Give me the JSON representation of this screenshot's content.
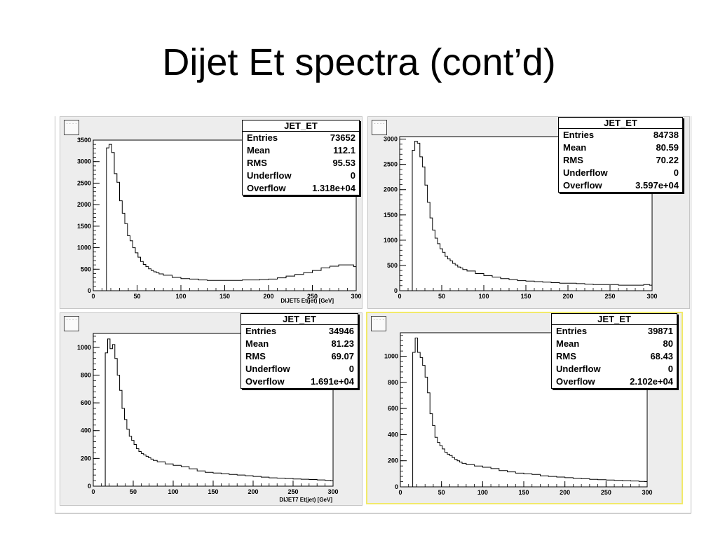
{
  "slide": {
    "title": "Dijet Et spectra (cont’d)"
  },
  "ui": {
    "corner_label": "····"
  },
  "colors": {
    "pad_bg": "#ededed",
    "hist_line": "#000000",
    "selected_border": "#f2ea6a"
  },
  "stat_labels": {
    "entries": "Entries",
    "mean": "Mean",
    "rms": "RMS",
    "underflow": "Underflow",
    "overflow": "Overflow"
  },
  "pads": [
    {
      "selected": false,
      "stats": {
        "title": "JET_ET",
        "entries": "73652",
        "mean": "112.1",
        "rms": "95.53",
        "underflow": "0",
        "overflow": "1.318e+04"
      },
      "xlabel": "DIJET5 Et(jet) [GeV]",
      "xlim": [
        0,
        300
      ],
      "ylim": [
        0,
        3500
      ],
      "xticks": [
        0,
        50,
        100,
        150,
        200,
        250,
        300
      ],
      "yticks": [
        0,
        500,
        1000,
        1500,
        2000,
        2500,
        3000,
        3500
      ]
    },
    {
      "selected": false,
      "stats": {
        "title": "JET_ET",
        "entries": "84738",
        "mean": "80.59",
        "rms": "70.22",
        "underflow": "0",
        "overflow": "3.597e+04"
      },
      "xlabel": "",
      "xlim": [
        0,
        300
      ],
      "ylim": [
        0,
        3050
      ],
      "xticks": [
        0,
        50,
        100,
        150,
        200,
        250,
        300
      ],
      "yticks": [
        0,
        500,
        1000,
        1500,
        2000,
        2500,
        3000
      ]
    },
    {
      "selected": false,
      "stats": {
        "title": "JET_ET",
        "entries": "34946",
        "mean": "81.23",
        "rms": "69.07",
        "underflow": "0",
        "overflow": "1.691e+04"
      },
      "xlabel": "DIJET7 Et(jet) [GeV]",
      "xlim": [
        0,
        300
      ],
      "ylim": [
        0,
        1100
      ],
      "xticks": [
        0,
        50,
        100,
        150,
        200,
        250,
        300
      ],
      "yticks": [
        0,
        200,
        400,
        600,
        800,
        1000
      ]
    },
    {
      "selected": true,
      "stats": {
        "title": "JET_ET",
        "entries": "39871",
        "mean": "80",
        "rms": "68.43",
        "underflow": "0",
        "overflow": "2.102e+04"
      },
      "xlabel": "",
      "xlim": [
        0,
        300
      ],
      "ylim": [
        0,
        1180
      ],
      "xticks": [
        0,
        50,
        100,
        150,
        200,
        250,
        300
      ],
      "yticks": [
        0,
        200,
        400,
        600,
        800,
        1000
      ]
    }
  ],
  "chart_data": [
    {
      "type": "histogram",
      "name": "JET_ET",
      "xlabel": "DIJET5 Et(jet) [GeV]",
      "xlim": [
        0,
        300
      ],
      "ylim": [
        0,
        3500
      ],
      "bin_width": 3,
      "x": [
        15,
        18,
        21,
        24,
        27,
        30,
        33,
        36,
        39,
        42,
        45,
        48,
        51,
        54,
        57,
        60,
        63,
        66,
        69,
        72,
        75,
        80,
        90,
        100,
        110,
        120,
        130,
        140,
        150,
        160,
        170,
        180,
        190,
        200,
        210,
        220,
        230,
        240,
        250,
        260,
        270,
        280,
        290,
        297
      ],
      "y": [
        3320,
        3400,
        3210,
        2720,
        2520,
        2090,
        1800,
        1560,
        1280,
        1160,
        1000,
        880,
        780,
        680,
        610,
        560,
        510,
        470,
        440,
        420,
        390,
        360,
        310,
        280,
        270,
        250,
        240,
        240,
        240,
        240,
        250,
        250,
        260,
        270,
        300,
        340,
        380,
        420,
        470,
        530,
        570,
        600,
        600,
        560
      ]
    },
    {
      "type": "histogram",
      "name": "JET_ET",
      "xlabel": "",
      "xlim": [
        0,
        300
      ],
      "ylim": [
        0,
        3050
      ],
      "bin_width": 3,
      "x": [
        15,
        18,
        21,
        24,
        27,
        30,
        33,
        36,
        39,
        42,
        45,
        48,
        51,
        54,
        57,
        60,
        63,
        66,
        69,
        72,
        75,
        80,
        90,
        100,
        110,
        120,
        130,
        140,
        150,
        160,
        170,
        180,
        190,
        200,
        210,
        220,
        230,
        240,
        250,
        260,
        270,
        280,
        290,
        297
      ],
      "y": [
        2780,
        2960,
        2920,
        2650,
        2450,
        2090,
        1750,
        1440,
        1200,
        1040,
        930,
        830,
        760,
        680,
        630,
        590,
        540,
        510,
        470,
        450,
        420,
        390,
        340,
        300,
        270,
        240,
        220,
        200,
        190,
        180,
        170,
        160,
        150,
        150,
        140,
        130,
        120,
        120,
        120,
        110,
        110,
        110,
        120,
        110
      ]
    },
    {
      "type": "histogram",
      "name": "JET_ET",
      "xlabel": "DIJET7 Et(jet) [GeV]",
      "xlim": [
        0,
        300
      ],
      "ylim": [
        0,
        1100
      ],
      "bin_width": 3,
      "x": [
        15,
        18,
        21,
        24,
        27,
        30,
        33,
        36,
        39,
        42,
        45,
        48,
        51,
        54,
        57,
        60,
        63,
        66,
        69,
        72,
        75,
        80,
        90,
        100,
        110,
        120,
        130,
        140,
        150,
        160,
        170,
        180,
        190,
        200,
        210,
        220,
        230,
        240,
        250,
        260,
        270,
        280,
        290,
        297
      ],
      "y": [
        960,
        1060,
        990,
        1020,
        920,
        800,
        690,
        560,
        480,
        410,
        360,
        330,
        300,
        270,
        250,
        235,
        225,
        215,
        205,
        195,
        185,
        175,
        160,
        150,
        140,
        125,
        110,
        100,
        95,
        90,
        85,
        80,
        75,
        70,
        65,
        60,
        58,
        55,
        52,
        50,
        48,
        45,
        42,
        40
      ]
    },
    {
      "type": "histogram",
      "name": "JET_ET",
      "xlabel": "",
      "xlim": [
        0,
        300
      ],
      "ylim": [
        0,
        1180
      ],
      "bin_width": 3,
      "x": [
        15,
        18,
        21,
        24,
        27,
        30,
        33,
        36,
        39,
        42,
        45,
        48,
        51,
        54,
        57,
        60,
        63,
        66,
        69,
        72,
        75,
        80,
        90,
        100,
        110,
        120,
        130,
        140,
        150,
        160,
        170,
        180,
        190,
        200,
        210,
        220,
        230,
        240,
        250,
        260,
        270,
        280,
        290,
        297
      ],
      "y": [
        1030,
        1140,
        1030,
        990,
        930,
        840,
        720,
        560,
        470,
        380,
        340,
        315,
        290,
        265,
        250,
        240,
        225,
        210,
        200,
        190,
        180,
        170,
        160,
        150,
        140,
        125,
        115,
        105,
        100,
        95,
        85,
        80,
        75,
        70,
        65,
        62,
        58,
        55,
        52,
        50,
        48,
        45,
        42,
        40
      ]
    }
  ]
}
